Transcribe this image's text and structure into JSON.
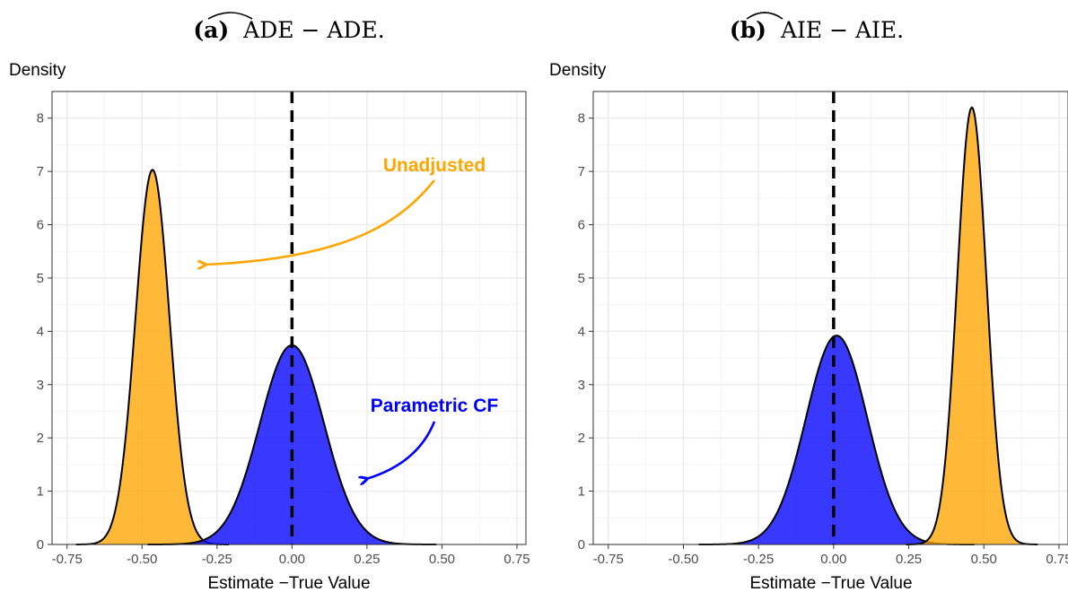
{
  "chart_data": [
    {
      "type": "area",
      "title_bold": "(a)",
      "title_est": "ADE",
      "title_rest": " − ADE.",
      "xlabel": "Estimate  −True Value",
      "ylabel": "Density",
      "xlim": [
        -0.8,
        0.78
      ],
      "ylim": [
        0,
        8.5
      ],
      "xticks": [
        -0.75,
        -0.5,
        -0.25,
        0.0,
        0.25,
        0.5,
        0.75
      ],
      "xtick_labels": [
        "-0.75",
        "-0.50",
        "-0.25",
        "0.00",
        "0.25",
        "0.50",
        "0.75"
      ],
      "yticks": [
        0,
        1,
        2,
        3,
        4,
        5,
        6,
        7,
        8
      ],
      "ytick_labels": [
        "0",
        "1",
        "2",
        "3",
        "4",
        "5",
        "6",
        "7",
        "8"
      ],
      "vline": 0.0,
      "grid": true,
      "series": [
        {
          "label": "Unadjusted",
          "color": "#FFA500",
          "mean": -0.465,
          "sd": 0.0567,
          "peak": 7.03
        },
        {
          "label": "Parametric CF",
          "color": "#0000FF",
          "mean": 0.0,
          "sd": 0.107,
          "peak": 3.74
        }
      ],
      "annotations": [
        {
          "text": "Unadjusted",
          "color": "#FFA500"
        },
        {
          "text": "Parametric CF",
          "color": "#0000FF"
        }
      ]
    },
    {
      "type": "area",
      "title_bold": "(b)",
      "title_est": "AIE",
      "title_rest": " − AIE.",
      "xlabel": "Estimate  −True Value",
      "ylabel": "Density",
      "xlim": [
        -0.8,
        0.78
      ],
      "ylim": [
        0,
        8.5
      ],
      "xticks": [
        -0.75,
        -0.5,
        -0.25,
        0.0,
        0.25,
        0.5,
        0.75
      ],
      "xtick_labels": [
        "-0.75",
        "-0.50",
        "-0.25",
        "0.00",
        "0.25",
        "0.50",
        "0.75"
      ],
      "yticks": [
        0,
        1,
        2,
        3,
        4,
        5,
        6,
        7,
        8
      ],
      "ytick_labels": [
        "0",
        "1",
        "2",
        "3",
        "4",
        "5",
        "6",
        "7",
        "8"
      ],
      "vline": 0.0,
      "grid": true,
      "series": [
        {
          "label": "",
          "color": "#0000FF",
          "mean": 0.01,
          "sd": 0.102,
          "peak": 3.92
        },
        {
          "label": "",
          "color": "#FFA500",
          "mean": 0.46,
          "sd": 0.0487,
          "peak": 8.2
        }
      ],
      "annotations": []
    }
  ]
}
